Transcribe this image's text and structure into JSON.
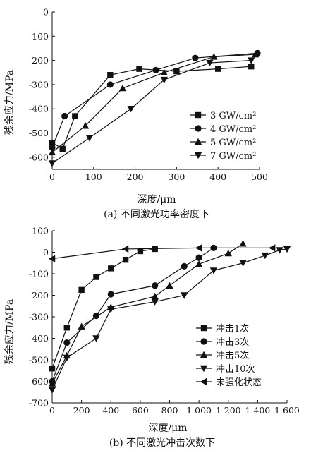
{
  "chart_data": [
    {
      "type": "line",
      "caption": "(a) 不同激光功率密度下",
      "xlabel": "深度/μm",
      "ylabel": "残余应力/MPa",
      "xlim": [
        0,
        500
      ],
      "ylim": [
        -650,
        0
      ],
      "xticks": [
        0,
        100,
        200,
        300,
        400,
        500
      ],
      "xtick_labels": [
        "0",
        "100",
        "200",
        "300",
        "400",
        "500"
      ],
      "yticks": [
        -600,
        -500,
        -400,
        -300,
        -200,
        -100,
        0
      ],
      "ytick_labels": [
        "-600",
        "-500",
        "-400",
        "-300",
        "-200",
        "-100",
        "0"
      ],
      "legend_position": "right",
      "series": [
        {
          "name": "3 GW/cm²",
          "marker": "square",
          "x": [
            0,
            25,
            55,
            140,
            210,
            300,
            400,
            480
          ],
          "y": [
            -540,
            -565,
            -430,
            -260,
            -235,
            -245,
            -235,
            -225
          ]
        },
        {
          "name": "4 GW/cm²",
          "marker": "circle",
          "x": [
            0,
            30,
            140,
            250,
            345,
            495
          ],
          "y": [
            -560,
            -430,
            -300,
            -240,
            -190,
            -170
          ]
        },
        {
          "name": "5 GW/cm²",
          "marker": "triangle-up",
          "x": [
            0,
            80,
            170,
            270,
            390,
            490
          ],
          "y": [
            -580,
            -470,
            -315,
            -250,
            -185,
            -175
          ]
        },
        {
          "name": "7 GW/cm²",
          "marker": "triangle-down",
          "x": [
            0,
            90,
            190,
            270,
            380,
            480
          ],
          "y": [
            -625,
            -520,
            -400,
            -280,
            -210,
            -200
          ]
        }
      ]
    },
    {
      "type": "line",
      "caption": "(b) 不同激光冲击次数下",
      "xlabel": "深度/μm",
      "ylabel": "残余应力/MPa",
      "xlim": [
        0,
        1600
      ],
      "ylim": [
        -700,
        100
      ],
      "xticks": [
        0,
        200,
        400,
        600,
        800,
        1000,
        1200,
        1400,
        1600
      ],
      "xtick_labels": [
        "0",
        "200",
        "400",
        "600",
        "800",
        "1 000",
        "1 200",
        "1 400",
        "1 600"
      ],
      "yticks": [
        -700,
        -600,
        -500,
        -400,
        -300,
        -200,
        -100,
        0,
        100
      ],
      "ytick_labels": [
        "-700",
        "-600",
        "-500",
        "-400",
        "-300",
        "-200",
        "-100",
        "0",
        "100"
      ],
      "legend_position": "bottom-right",
      "series": [
        {
          "name": "冲击1次",
          "marker": "square",
          "x": [
            0,
            100,
            200,
            300,
            400,
            500,
            600,
            700
          ],
          "y": [
            -540,
            -350,
            -175,
            -115,
            -75,
            -35,
            5,
            15
          ]
        },
        {
          "name": "冲击3次",
          "marker": "circle",
          "x": [
            0,
            100,
            300,
            400,
            700,
            900,
            1000,
            1100
          ],
          "y": [
            -600,
            -420,
            -295,
            -195,
            -155,
            -65,
            -25,
            20
          ]
        },
        {
          "name": "冲击5次",
          "marker": "triangle-up",
          "x": [
            0,
            100,
            200,
            400,
            700,
            800,
            1000,
            1200,
            1300
          ],
          "y": [
            -610,
            -480,
            -345,
            -255,
            -205,
            -155,
            -55,
            -5,
            40
          ]
        },
        {
          "name": "冲击10次",
          "marker": "triangle-down",
          "x": [
            0,
            100,
            300,
            400,
            700,
            900,
            1100,
            1300,
            1450,
            1550,
            1600
          ],
          "y": [
            -640,
            -490,
            -400,
            -265,
            -230,
            -200,
            -85,
            -50,
            -15,
            10,
            15
          ]
        },
        {
          "name": "未强化状态",
          "marker": "triangle-left",
          "x": [
            0,
            500,
            1000,
            1500
          ],
          "y": [
            -30,
            15,
            20,
            20
          ]
        }
      ]
    }
  ]
}
